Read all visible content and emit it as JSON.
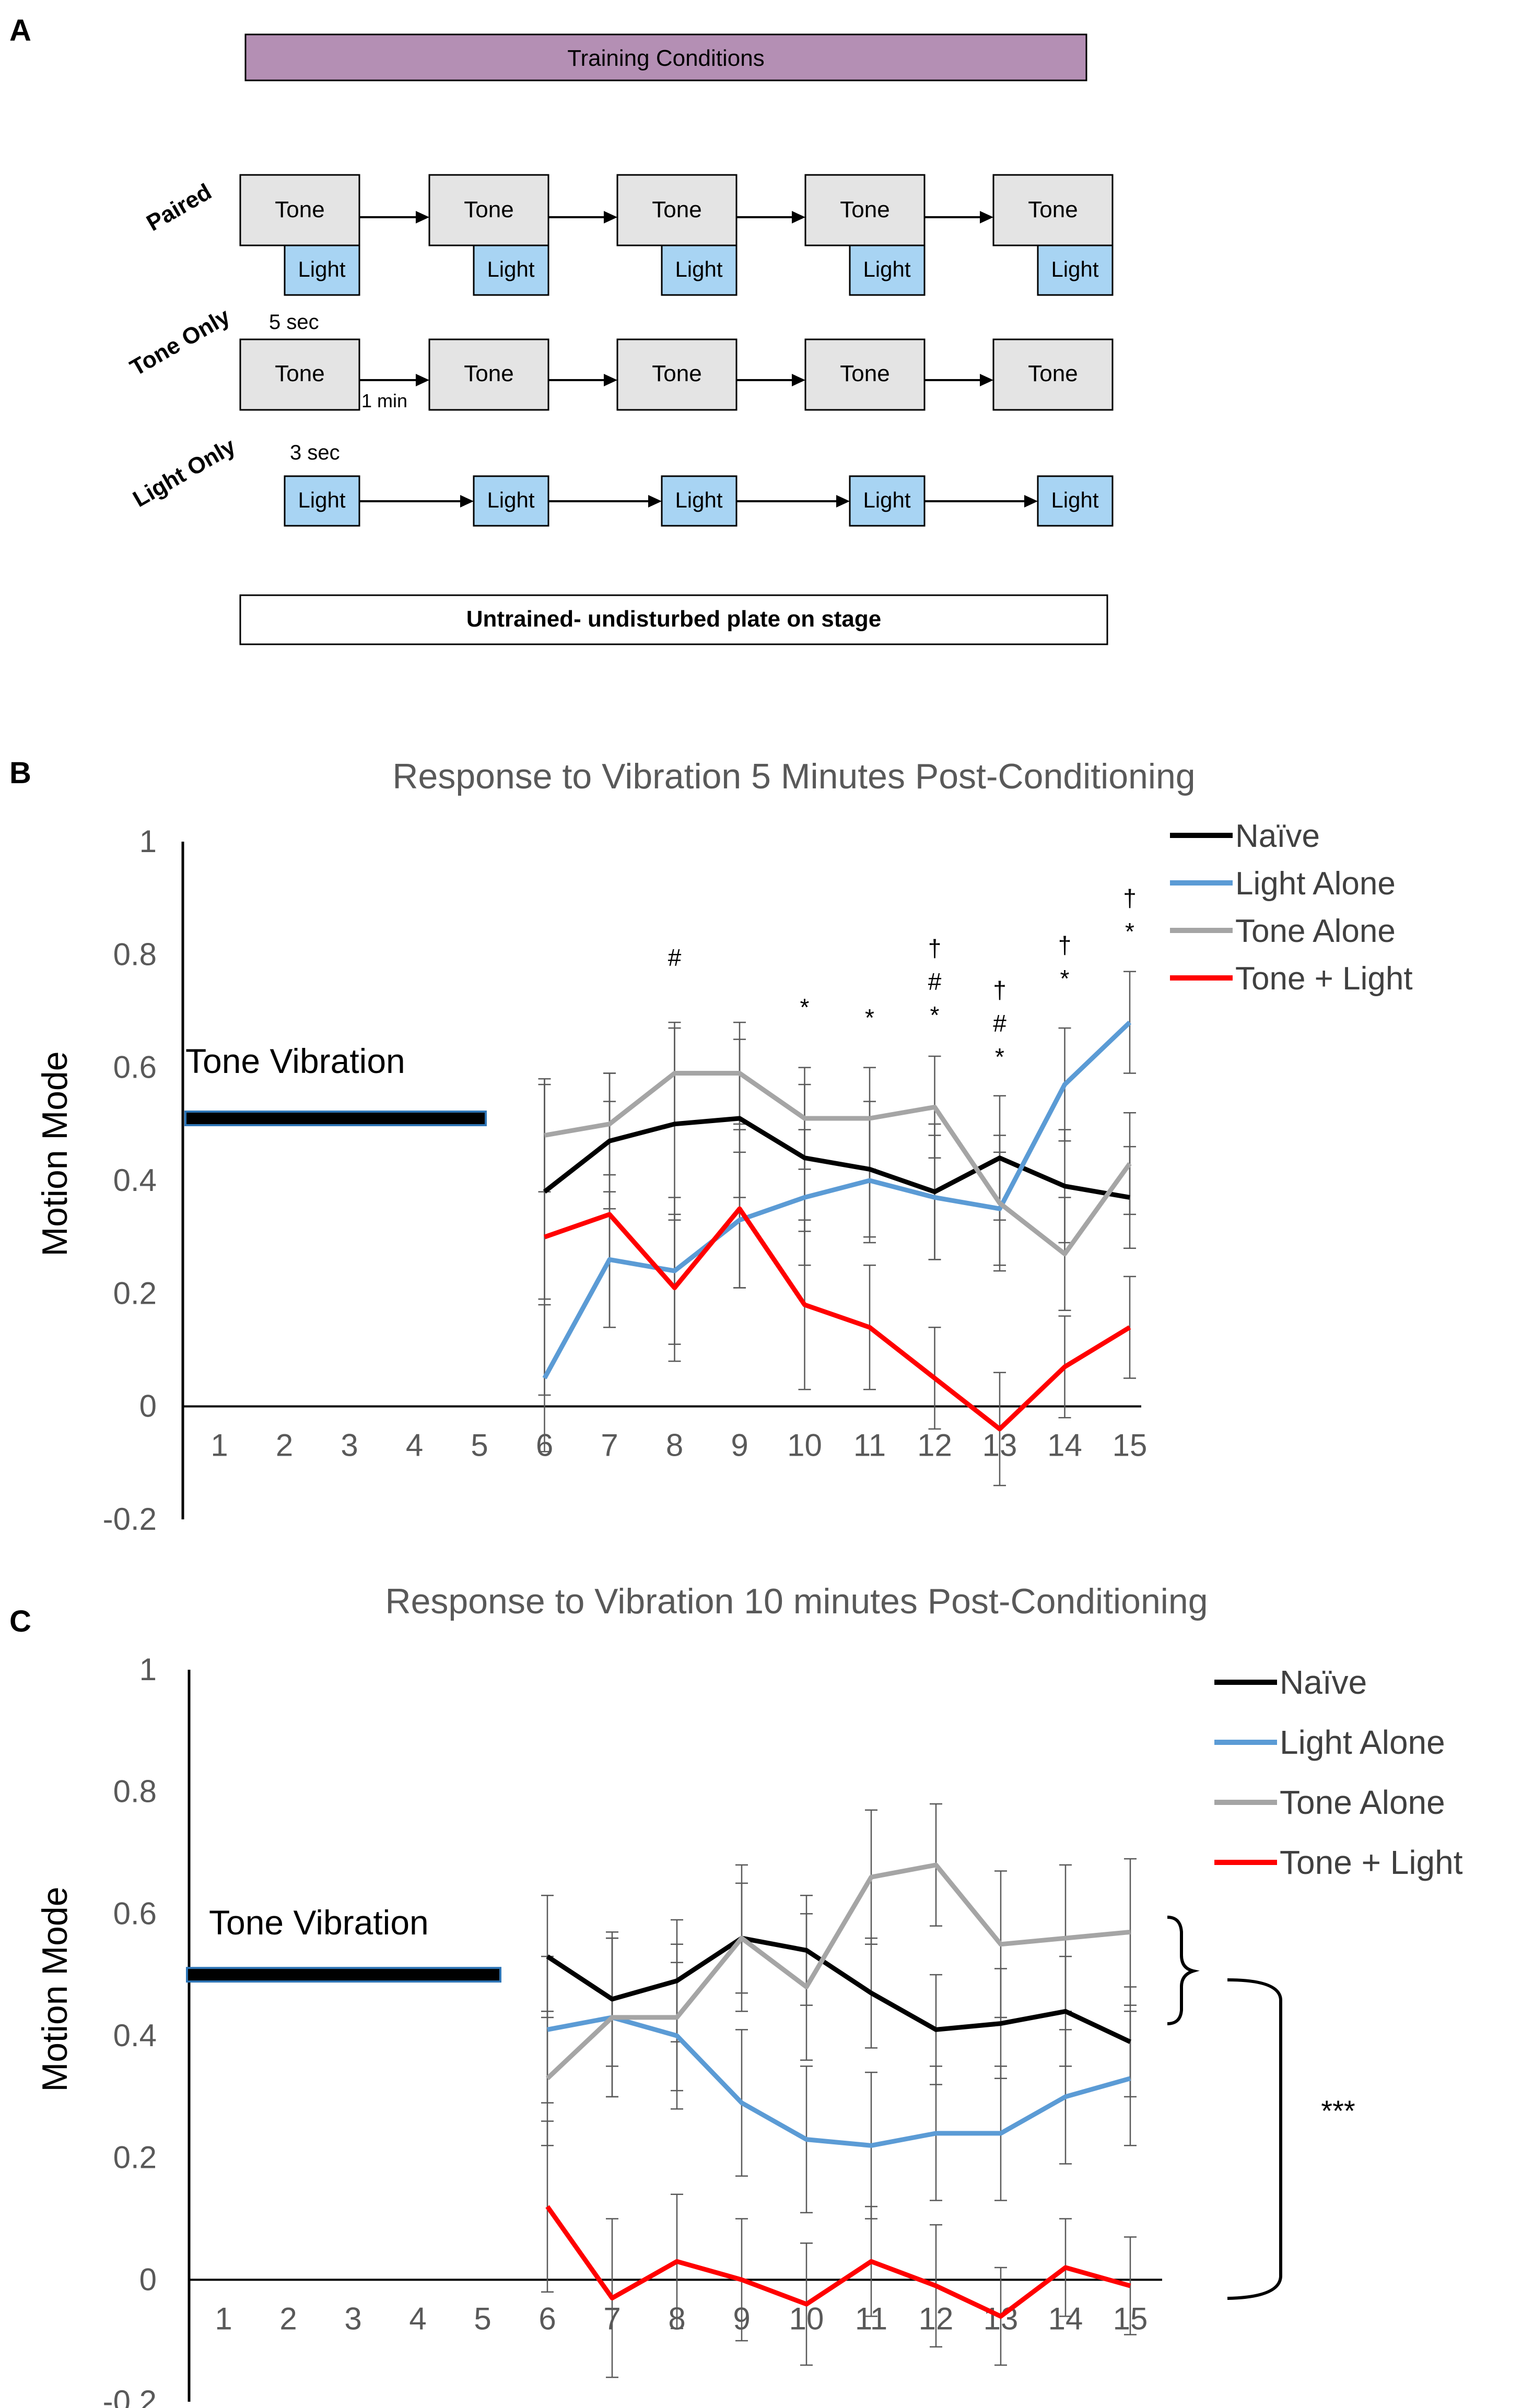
{
  "panels": {
    "a": "A",
    "b": "B",
    "c": "C"
  },
  "diagram": {
    "title": "Training Conditions",
    "rows": {
      "paired": "Paired",
      "tone_only": "Tone Only",
      "light_only": "Light Only"
    },
    "tone_label": "Tone",
    "light_label": "Light",
    "tone_duration": "5 sec",
    "interval": "1 min",
    "light_duration": "3 sec",
    "untrained": "Untrained- undisturbed plate on stage",
    "colors": {
      "title_fill": "#b48fb4",
      "tone_fill": "#e4e4e4",
      "light_fill": "#a8d4f3"
    }
  },
  "chart_data": [
    {
      "type": "line",
      "title": "Response to Vibration 5 Minutes Post-Conditioning",
      "ylabel": "Motion Mode",
      "xlabel": "",
      "ylim": [
        -0.2,
        1
      ],
      "yticks": [
        "1",
        "0.8",
        "0.6",
        "0.4",
        "0.2",
        "0",
        "-0.2"
      ],
      "categories": [
        "1",
        "2",
        "3",
        "4",
        "5",
        "6",
        "7",
        "8",
        "9",
        "10",
        "11",
        "12",
        "13",
        "14",
        "15"
      ],
      "x": [
        6,
        7,
        8,
        9,
        10,
        11,
        12,
        13,
        14,
        15
      ],
      "stimulus_label": "Tone Vibration",
      "stimulus": {
        "x": [
          1,
          5
        ],
        "y": 0.51
      },
      "series": [
        {
          "name": "Naïve",
          "color": "#000000",
          "values": [
            0.38,
            0.47,
            0.5,
            0.51,
            0.44,
            0.42,
            0.38,
            0.44,
            0.39,
            0.37
          ],
          "errors": [
            0.19,
            0.12,
            0.17,
            0.14,
            0.13,
            0.12,
            0.12,
            0.11,
            0.1,
            0.09
          ]
        },
        {
          "name": "Light Alone",
          "color": "#5b9bd5",
          "values": [
            0.05,
            0.26,
            0.24,
            0.33,
            0.37,
            0.4,
            0.37,
            0.35,
            0.57,
            0.68
          ],
          "errors": [
            0.13,
            0.12,
            0.13,
            0.12,
            0.12,
            0.11,
            0.11,
            0.1,
            0.1,
            0.09
          ]
        },
        {
          "name": "Tone Alone",
          "color": "#a5a5a5",
          "values": [
            0.48,
            0.5,
            0.59,
            0.59,
            0.51,
            0.51,
            0.53,
            0.36,
            0.27,
            0.43
          ],
          "errors": [
            0.1,
            0.09,
            0.09,
            0.09,
            0.09,
            0.09,
            0.09,
            0.12,
            0.1,
            0.09
          ]
        },
        {
          "name": "Tone + Light",
          "color": "#ff0000",
          "values": [
            0.3,
            0.34,
            0.21,
            0.35,
            0.18,
            0.14,
            0.05,
            -0.04,
            0.07,
            0.14
          ],
          "errors": [
            0.28,
            0.2,
            0.13,
            0.14,
            0.15,
            0.11,
            0.09,
            0.1,
            0.09,
            0.09
          ]
        }
      ],
      "annotations": [
        {
          "x": 8,
          "marks": [
            "#"
          ]
        },
        {
          "x": 10,
          "marks": [
            "*"
          ]
        },
        {
          "x": 11,
          "marks": [
            "*"
          ]
        },
        {
          "x": 12,
          "marks": [
            "†",
            "#",
            "*"
          ]
        },
        {
          "x": 13,
          "marks": [
            "†",
            "#",
            "*"
          ]
        },
        {
          "x": 14,
          "marks": [
            "†",
            "*"
          ]
        },
        {
          "x": 15,
          "marks": [
            "†",
            "*"
          ]
        }
      ]
    },
    {
      "type": "line",
      "title": "Response to Vibration 10 minutes Post-Conditioning",
      "ylabel": "Motion Mode",
      "xlabel": "",
      "ylim": [
        -0.2,
        1
      ],
      "yticks": [
        "1",
        "0.8",
        "0.6",
        "0.4",
        "0.2",
        "0",
        "-0.2"
      ],
      "categories": [
        "1",
        "2",
        "3",
        "4",
        "5",
        "6",
        "7",
        "8",
        "9",
        "10",
        "11",
        "12",
        "13",
        "14",
        "15"
      ],
      "x": [
        6,
        7,
        8,
        9,
        10,
        11,
        12,
        13,
        14,
        15
      ],
      "stimulus_label": "Tone Vibration",
      "stimulus": {
        "x": [
          1,
          5
        ],
        "y": 0.5
      },
      "series": [
        {
          "name": "Naïve",
          "color": "#000000",
          "values": [
            0.53,
            0.46,
            0.49,
            0.56,
            0.54,
            0.47,
            0.41,
            0.42,
            0.44,
            0.39
          ],
          "errors": [
            0.1,
            0.11,
            0.1,
            0.09,
            0.09,
            0.09,
            0.09,
            0.09,
            0.09,
            0.09
          ]
        },
        {
          "name": "Light Alone",
          "color": "#5b9bd5",
          "values": [
            0.41,
            0.43,
            0.4,
            0.29,
            0.23,
            0.22,
            0.24,
            0.24,
            0.3,
            0.33
          ],
          "errors": [
            0.12,
            0.13,
            0.12,
            0.12,
            0.12,
            0.12,
            0.11,
            0.11,
            0.11,
            0.11
          ]
        },
        {
          "name": "Tone Alone",
          "color": "#a5a5a5",
          "values": [
            0.33,
            0.43,
            0.43,
            0.56,
            0.48,
            0.66,
            0.68,
            0.55,
            0.56,
            0.57
          ],
          "errors": [
            0.11,
            0.13,
            0.12,
            0.12,
            0.12,
            0.11,
            0.1,
            0.12,
            0.12,
            0.12
          ]
        },
        {
          "name": "Tone + Light",
          "color": "#ff0000",
          "values": [
            0.12,
            -0.03,
            0.03,
            0.0,
            -0.04,
            0.03,
            -0.01,
            -0.06,
            0.02,
            -0.01
          ],
          "errors": [
            0.14,
            0.13,
            0.11,
            0.1,
            0.1,
            0.09,
            0.1,
            0.08,
            0.08,
            0.08
          ]
        }
      ],
      "significance": "***"
    }
  ]
}
